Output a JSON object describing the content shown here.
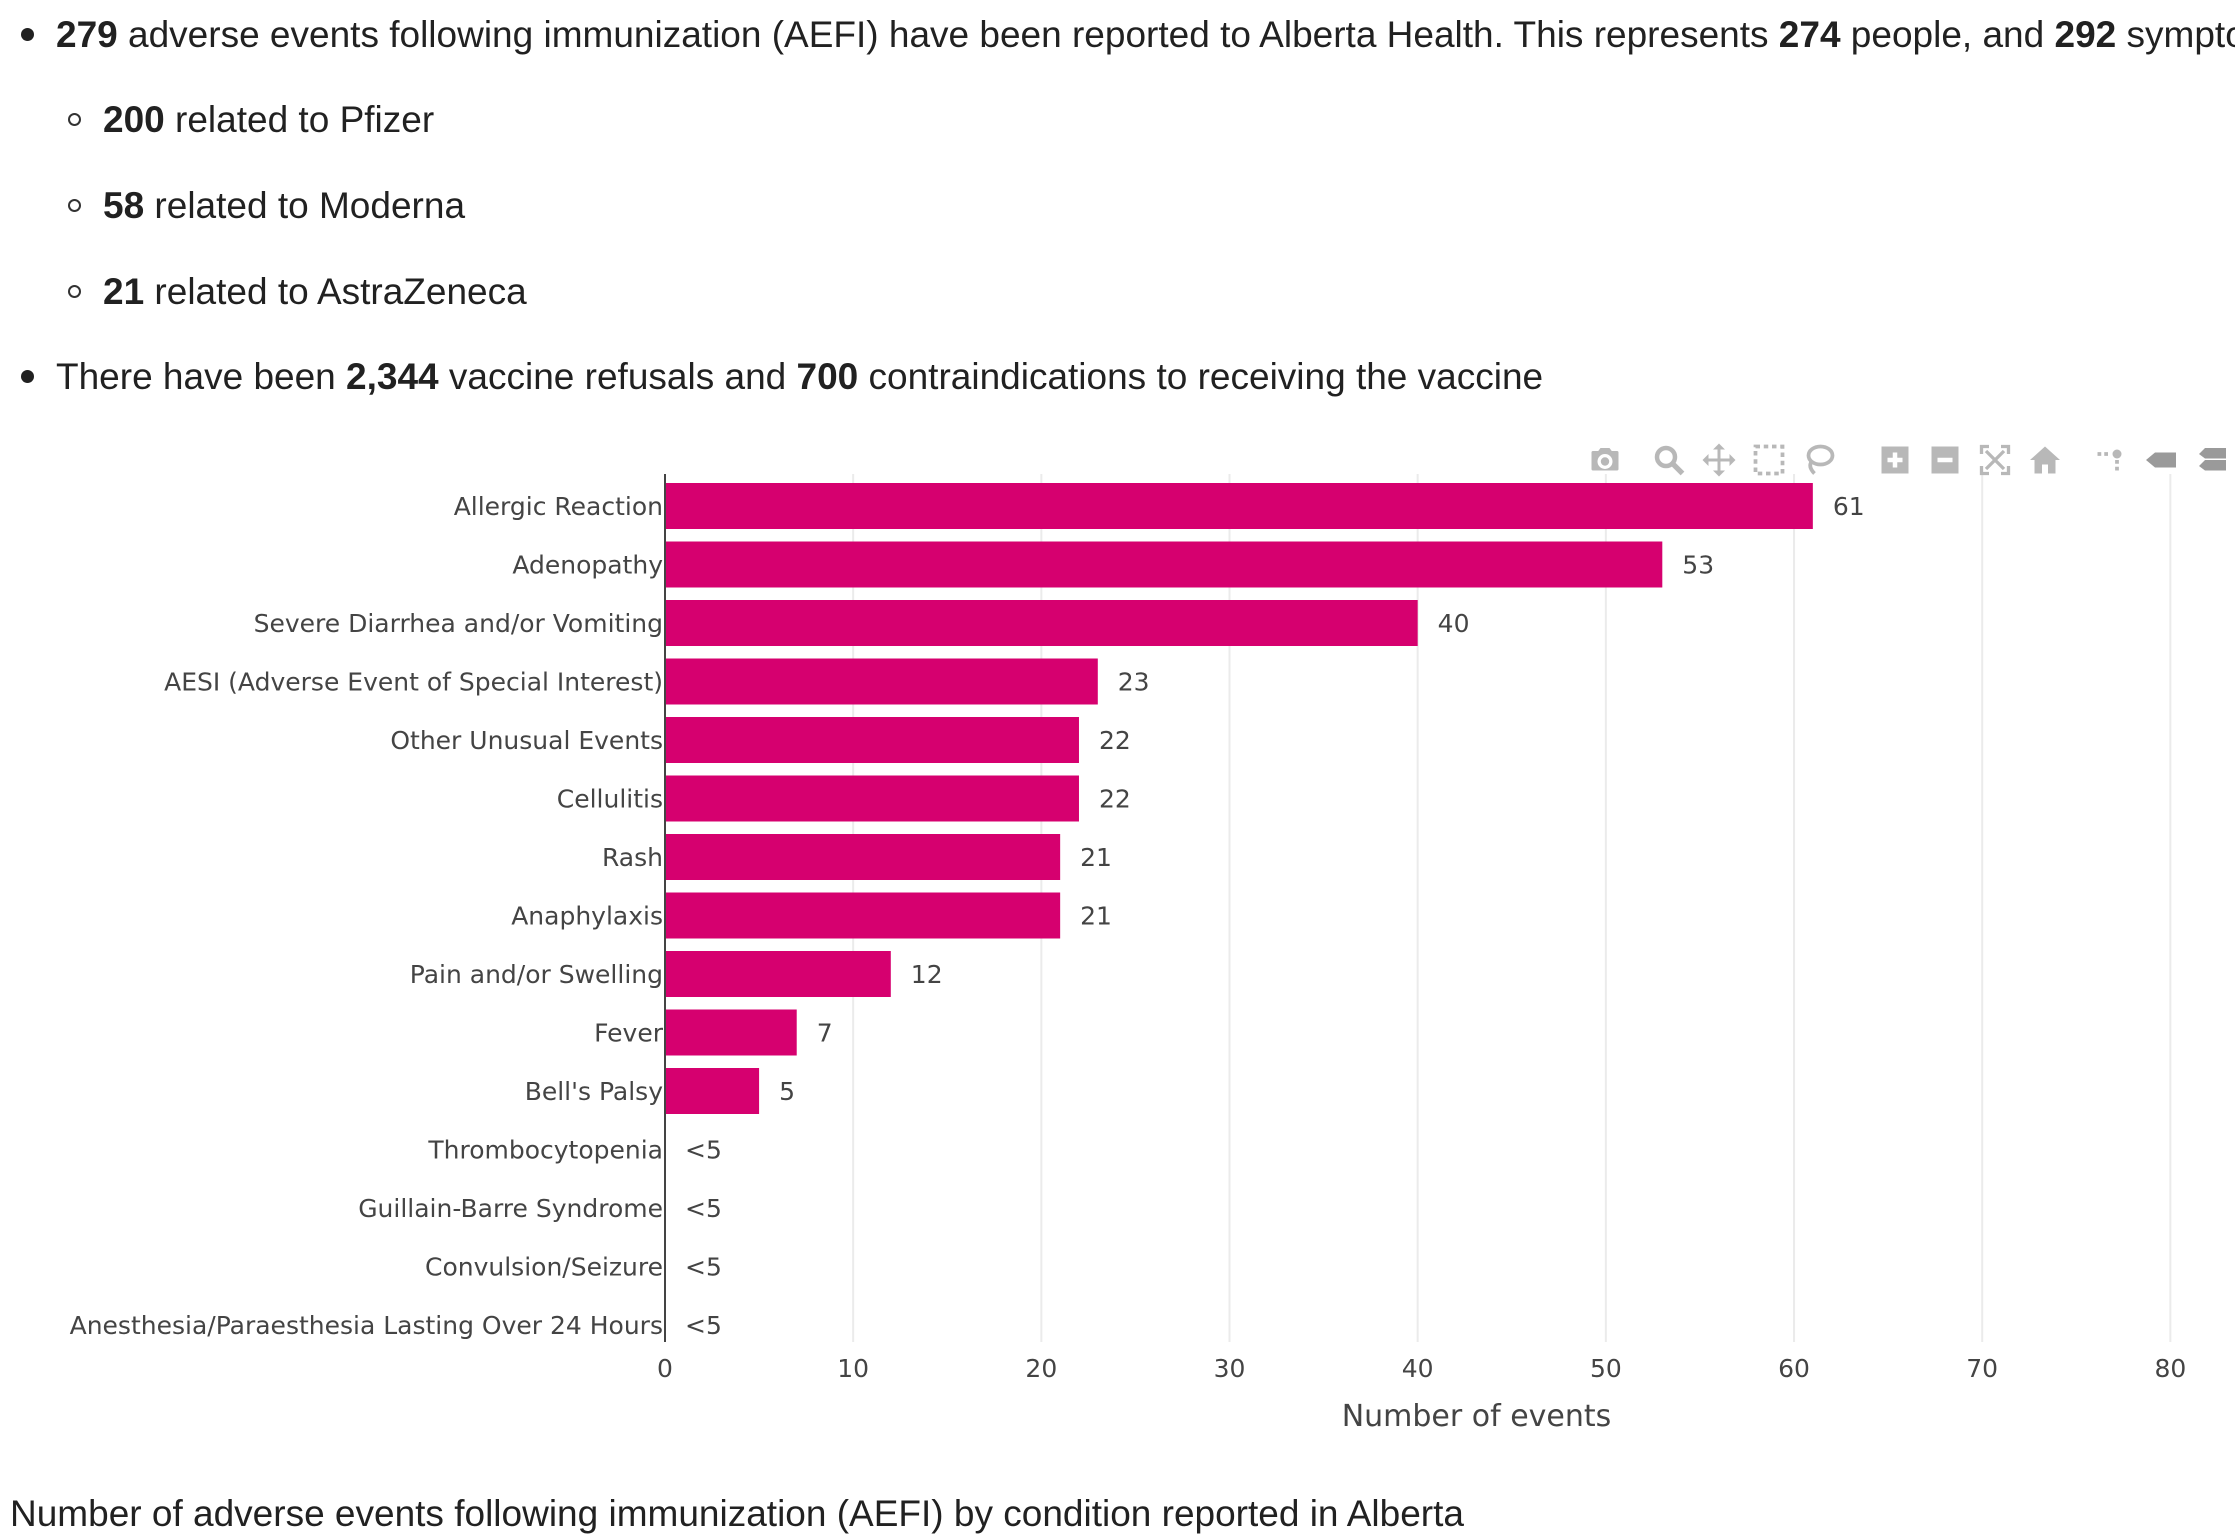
{
  "bullets": {
    "b1": {
      "n1": "279",
      "t1": " adverse events following immunization (AEFI) have been reported to Alberta Health. This represents ",
      "n2": "274",
      "t2": " people, and ",
      "n3": "292",
      "t3": " symptoms."
    },
    "sub": [
      {
        "num": "200",
        "text": " related to Pfizer"
      },
      {
        "num": "58",
        "text": " related to Moderna"
      },
      {
        "num": "21",
        "text": " related to AstraZeneca"
      }
    ],
    "b2": {
      "t1": "There have been ",
      "n1": "2,344",
      "t2": " vaccine refusals and ",
      "n2": "700",
      "t3": " contraindications to receiving the vaccine"
    }
  },
  "chart_data": {
    "type": "bar",
    "orientation": "horizontal",
    "categories": [
      "Allergic Reaction",
      "Adenopathy",
      "Severe Diarrhea and/or Vomiting",
      "AESI (Adverse Event of Special Interest)",
      "Other Unusual Events",
      "Cellulitis",
      "Rash",
      "Anaphylaxis",
      "Pain and/or Swelling",
      "Fever",
      "Bell's Palsy",
      "Thrombocytopenia",
      "Guillain-Barre Syndrome",
      "Convulsion/Seizure",
      "Anesthesia/Paraesthesia Lasting Over 24 Hours"
    ],
    "values": [
      61,
      53,
      40,
      23,
      22,
      22,
      21,
      21,
      12,
      7,
      5,
      null,
      null,
      null,
      null
    ],
    "value_labels": [
      "61",
      "53",
      "40",
      "23",
      "22",
      "22",
      "21",
      "21",
      "12",
      "7",
      "5",
      "<5",
      "<5",
      "<5",
      "<5"
    ],
    "xlabel": "Number of events",
    "ylabel": "",
    "xlim": [
      0,
      82
    ],
    "xticks": [
      0,
      10,
      20,
      30,
      40,
      50,
      60,
      70,
      80
    ],
    "grid": true,
    "bar_color": "#d6006f"
  },
  "modebar": [
    "camera-icon",
    "zoom-icon",
    "pan-icon",
    "box-select-icon",
    "lasso-select-icon",
    "zoom-in-icon",
    "zoom-out-icon",
    "autoscale-icon",
    "reset-axes-icon",
    "spike-lines-icon",
    "hover-closest-icon",
    "hover-compare-icon"
  ],
  "caption": "Number of adverse events following immunization (AEFI) by condition reported in Alberta"
}
